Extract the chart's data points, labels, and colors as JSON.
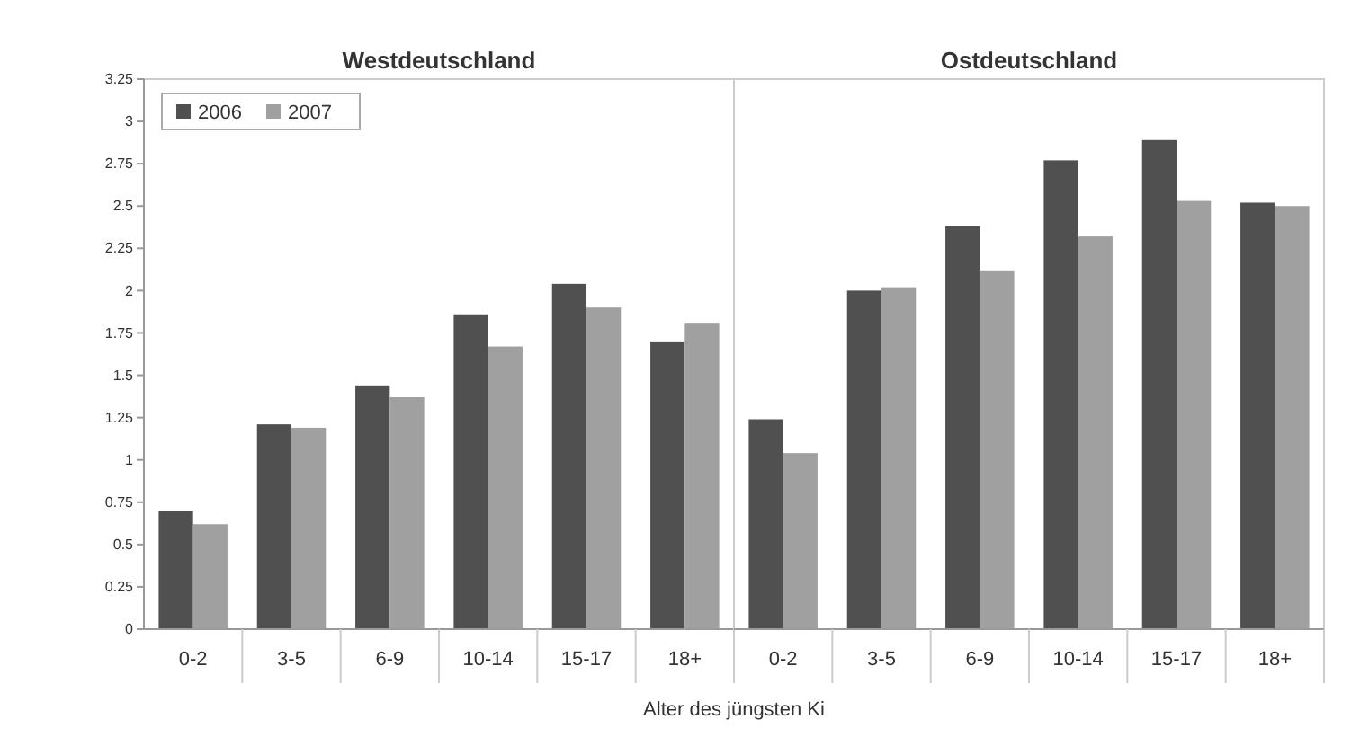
{
  "chart_data": [
    {
      "type": "bar",
      "title": "Westdeutschland",
      "xlabel": "Alter des jüngsten Ki",
      "categories": [
        "0-2",
        "3-5",
        "6-9",
        "10-14",
        "15-17",
        "18+"
      ],
      "series": [
        {
          "name": "2006",
          "color": "#505050",
          "values": [
            0.7,
            1.21,
            1.44,
            1.86,
            2.04,
            1.7
          ]
        },
        {
          "name": "2007",
          "color": "#a0a0a0",
          "values": [
            0.62,
            1.19,
            1.37,
            1.67,
            1.9,
            1.81
          ]
        }
      ],
      "ylim": [
        0,
        3.25
      ],
      "yticks": [
        0,
        0.25,
        0.5,
        0.75,
        1,
        1.25,
        1.5,
        1.75,
        2,
        2.25,
        2.5,
        2.75,
        3,
        3.25
      ],
      "legend": "top left"
    },
    {
      "type": "bar",
      "title": "Ostdeutschland",
      "categories": [
        "0-2",
        "3-5",
        "6-9",
        "10-14",
        "15-17",
        "18+"
      ],
      "series": [
        {
          "color": "#505050",
          "values": [
            1.24,
            2.0,
            2.38,
            2.77,
            2.89,
            2.52
          ]
        },
        {
          "color": "#a0a0a0",
          "values": [
            1.04,
            2.02,
            2.12,
            2.32,
            2.53,
            2.5
          ]
        }
      ],
      "ylim": [
        0,
        3.25
      ],
      "tick_labels": "x"
    }
  ]
}
